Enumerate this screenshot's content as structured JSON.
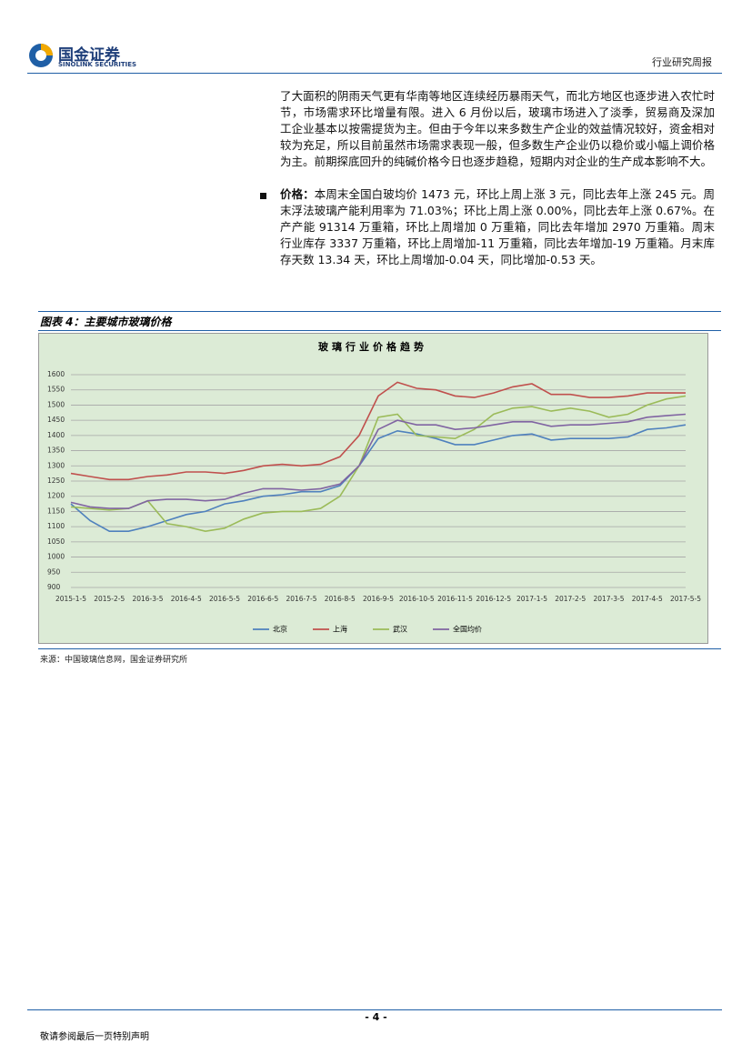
{
  "header": {
    "logo_cn": "国金证券",
    "logo_en": "SINOLINK SECURITIES",
    "report_type": "行业研究周报"
  },
  "body": {
    "paragraph": "了大面积的阴雨天气更有华南等地区连续经历暴雨天气，而北方地区也逐步进入农忙时节，市场需求环比增量有限。进入 6 月份以后，玻璃市场进入了淡季，贸易商及深加工企业基本以按需提货为主。但由于今年以来多数生产企业的效益情况较好，资金相对较为充足，所以目前虽然市场需求表现一般，但多数生产企业仍以稳价或小幅上调价格为主。前期探底回升的纯碱价格今日也逐步趋稳，短期内对企业的生产成本影响不大。",
    "bullet": {
      "label": "价格：",
      "text": "本周末全国白玻均价 1473 元，环比上周上涨 3 元，同比去年上涨 245 元。周末浮法玻璃产能利用率为 71.03%；环比上周上涨 0.00%，同比去年上涨 0.67%。在产产能 91314 万重箱，环比上周增加 0 万重箱，同比去年增加 2970 万重箱。周末行业库存 3337 万重箱，环比上周增加-11 万重箱，同比去年增加-19 万重箱。月末库存天数 13.34 天，环比上周增加-0.04 天，同比增加-0.53 天。"
    }
  },
  "figure": {
    "title": "图表 4：主要城市玻璃价格",
    "source": "来源：中国玻璃信息网，国金证券研究所"
  },
  "chart_data": {
    "type": "line",
    "title": "玻璃行业价格趋势",
    "categories": [
      "2015-1-5",
      null,
      "2015-2-5",
      null,
      "2016-3-5",
      null,
      "2016-4-5",
      null,
      "2016-5-5",
      null,
      "2016-6-5",
      null,
      "2016-7-5",
      null,
      "2016-8-5",
      null,
      "2016-9-5",
      null,
      "2016-10-5",
      null,
      "2016-11-5",
      null,
      "2016-12-5",
      null,
      "2017-1-5",
      null,
      "2017-2-5",
      null,
      "2017-3-5",
      null,
      "2017-4-5",
      null,
      "2017-5-5"
    ],
    "series": [
      {
        "name": "北京",
        "color": "#4f81bd",
        "values": [
          1175,
          1120,
          1085,
          1085,
          1100,
          1120,
          1140,
          1150,
          1175,
          1185,
          1200,
          1205,
          1215,
          1215,
          1235,
          1300,
          1390,
          1415,
          1405,
          1390,
          1370,
          1370,
          1385,
          1400,
          1405,
          1385,
          1390,
          1390,
          1390,
          1395,
          1420,
          1425,
          1435
        ]
      },
      {
        "name": "上海",
        "color": "#c0504d",
        "values": [
          1275,
          1265,
          1255,
          1255,
          1265,
          1270,
          1280,
          1280,
          1275,
          1285,
          1300,
          1305,
          1300,
          1305,
          1330,
          1400,
          1530,
          1575,
          1555,
          1550,
          1530,
          1525,
          1540,
          1560,
          1570,
          1535,
          1535,
          1525,
          1525,
          1530,
          1540,
          1540,
          1540
        ]
      },
      {
        "name": "武汉",
        "color": "#9bbb59",
        "values": [
          1165,
          1160,
          1155,
          1160,
          1185,
          1110,
          1100,
          1085,
          1095,
          1125,
          1145,
          1150,
          1150,
          1160,
          1200,
          1300,
          1460,
          1470,
          1400,
          1395,
          1390,
          1420,
          1470,
          1490,
          1495,
          1480,
          1490,
          1480,
          1460,
          1470,
          1500,
          1520,
          1530
        ]
      },
      {
        "name": "全国均价",
        "color": "#8064a2",
        "values": [
          1180,
          1165,
          1160,
          1160,
          1185,
          1190,
          1190,
          1185,
          1190,
          1210,
          1225,
          1225,
          1220,
          1225,
          1240,
          1300,
          1420,
          1450,
          1435,
          1435,
          1420,
          1425,
          1435,
          1445,
          1445,
          1430,
          1435,
          1435,
          1440,
          1445,
          1460,
          1465,
          1470
        ]
      }
    ],
    "ylim": [
      900,
      1600
    ],
    "yticks": [
      900,
      950,
      1000,
      1050,
      1100,
      1150,
      1200,
      1250,
      1300,
      1350,
      1400,
      1450,
      1500,
      1550,
      1600
    ],
    "grid": true,
    "legend": "bottom"
  },
  "footer": {
    "page": "- 4 -",
    "disclaimer": "敬请参阅最后一页特别声明"
  }
}
